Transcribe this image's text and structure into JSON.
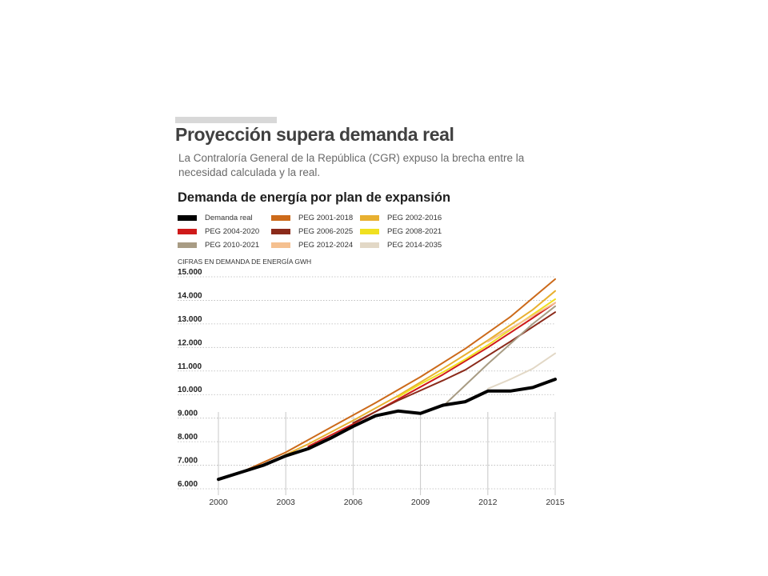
{
  "title": "Proyección supera demanda real",
  "subtitle": "La Contraloría General de la República (CGR) expuso la brecha entre la necesidad calculada y la real.",
  "chart_data": {
    "type": "line",
    "title": "Demanda de energía por plan de expansión",
    "ylabel": "CIFRAS EN DEMANDA DE ENERGÍA GWH",
    "xlabel": "",
    "xlim": [
      2000,
      2015
    ],
    "ylim": [
      6000,
      15000
    ],
    "x_ticks": [
      "2000",
      "2003",
      "2006",
      "2009",
      "2012",
      "2015"
    ],
    "y_ticks": [
      "15.000",
      "14.000",
      "13.000",
      "12.000",
      "11.000",
      "10.000",
      "9.000",
      "8.000",
      "7.000",
      "6.000"
    ],
    "grid": "horizontal dotted",
    "legend_position": "top-left",
    "series": [
      {
        "name": "Demanda real",
        "color": "#000000",
        "x": [
          2000,
          2001,
          2002,
          2003,
          2004,
          2005,
          2006,
          2007,
          2008,
          2009,
          2010,
          2011,
          2012,
          2013,
          2014,
          2015
        ],
        "y": [
          6400,
          6700,
          7000,
          7400,
          7700,
          8150,
          8650,
          9100,
          9300,
          9200,
          9550,
          9700,
          10150,
          10150,
          10300,
          10650
        ]
      },
      {
        "name": "PEG 2001-2018",
        "color": "#cc6a1a",
        "x": [
          2001,
          2003,
          2005,
          2007,
          2009,
          2011,
          2013,
          2015
        ],
        "y": [
          6700,
          7550,
          8600,
          9650,
          10750,
          11950,
          13300,
          14900
        ]
      },
      {
        "name": "PEG 2002-2016",
        "color": "#e8b030",
        "x": [
          2002,
          2004,
          2006,
          2008,
          2010,
          2012,
          2014,
          2015
        ],
        "y": [
          7000,
          7900,
          8900,
          9950,
          11100,
          12300,
          13600,
          14400
        ]
      },
      {
        "name": "PEG 2004-2020",
        "color": "#cf1a1a",
        "x": [
          2004,
          2006,
          2008,
          2010,
          2012,
          2014,
          2015
        ],
        "y": [
          7800,
          8750,
          9800,
          10850,
          12000,
          13250,
          13900
        ]
      },
      {
        "name": "PEG 2006-2025",
        "color": "#8b2a1a",
        "x": [
          2006,
          2008,
          2010,
          2011,
          2013,
          2015
        ],
        "y": [
          8800,
          9750,
          10600,
          11050,
          12250,
          13500
        ]
      },
      {
        "name": "PEG 2008-2021",
        "color": "#f0e020",
        "x": [
          2008,
          2009,
          2010,
          2011,
          2012,
          2013,
          2014,
          2015
        ],
        "y": [
          9900,
          10450,
          10950,
          11500,
          12100,
          12750,
          13400,
          14050
        ]
      },
      {
        "name": "PEG 2010-2021",
        "color": "#a89c84",
        "x": [
          2010,
          2012,
          2014,
          2015
        ],
        "y": [
          9500,
          11300,
          13000,
          13750
        ]
      },
      {
        "name": "PEG 2012-2024",
        "color": "#f5c090",
        "x": [
          2012,
          2013,
          2014,
          2015
        ],
        "y": [
          12250,
          12800,
          13350,
          13900
        ]
      },
      {
        "name": "PEG 2014-2035",
        "color": "#e2d8c6",
        "x": [
          2012,
          2013,
          2014,
          2015
        ],
        "y": [
          10250,
          10650,
          11100,
          11750
        ]
      }
    ]
  }
}
